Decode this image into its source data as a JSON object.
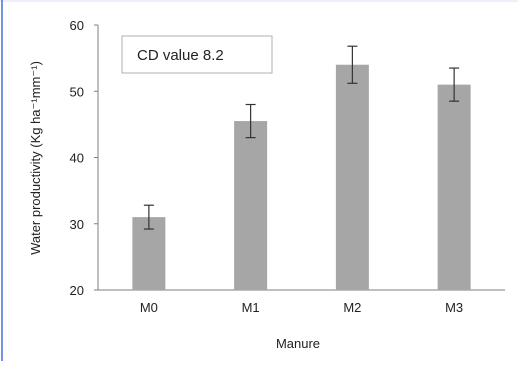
{
  "chart_data": {
    "type": "bar",
    "categories": [
      "M0",
      "M1",
      "M2",
      "M3"
    ],
    "values": [
      31,
      45.5,
      54,
      51
    ],
    "error": [
      1.8,
      2.5,
      2.8,
      2.5
    ],
    "xlabel": "Manure",
    "ylabel": "Water productivity (Kg ha⁻¹mm⁻¹)",
    "ylim": [
      20,
      60
    ],
    "yticks": [
      20,
      30,
      40,
      50,
      60
    ],
    "grid": false,
    "annotation": "CD value 8.2",
    "colors": {
      "bar": "#a6a6a6",
      "axis": "#7f7f7f",
      "errorbar": "#333333",
      "frame": "#4a6fd6"
    }
  }
}
